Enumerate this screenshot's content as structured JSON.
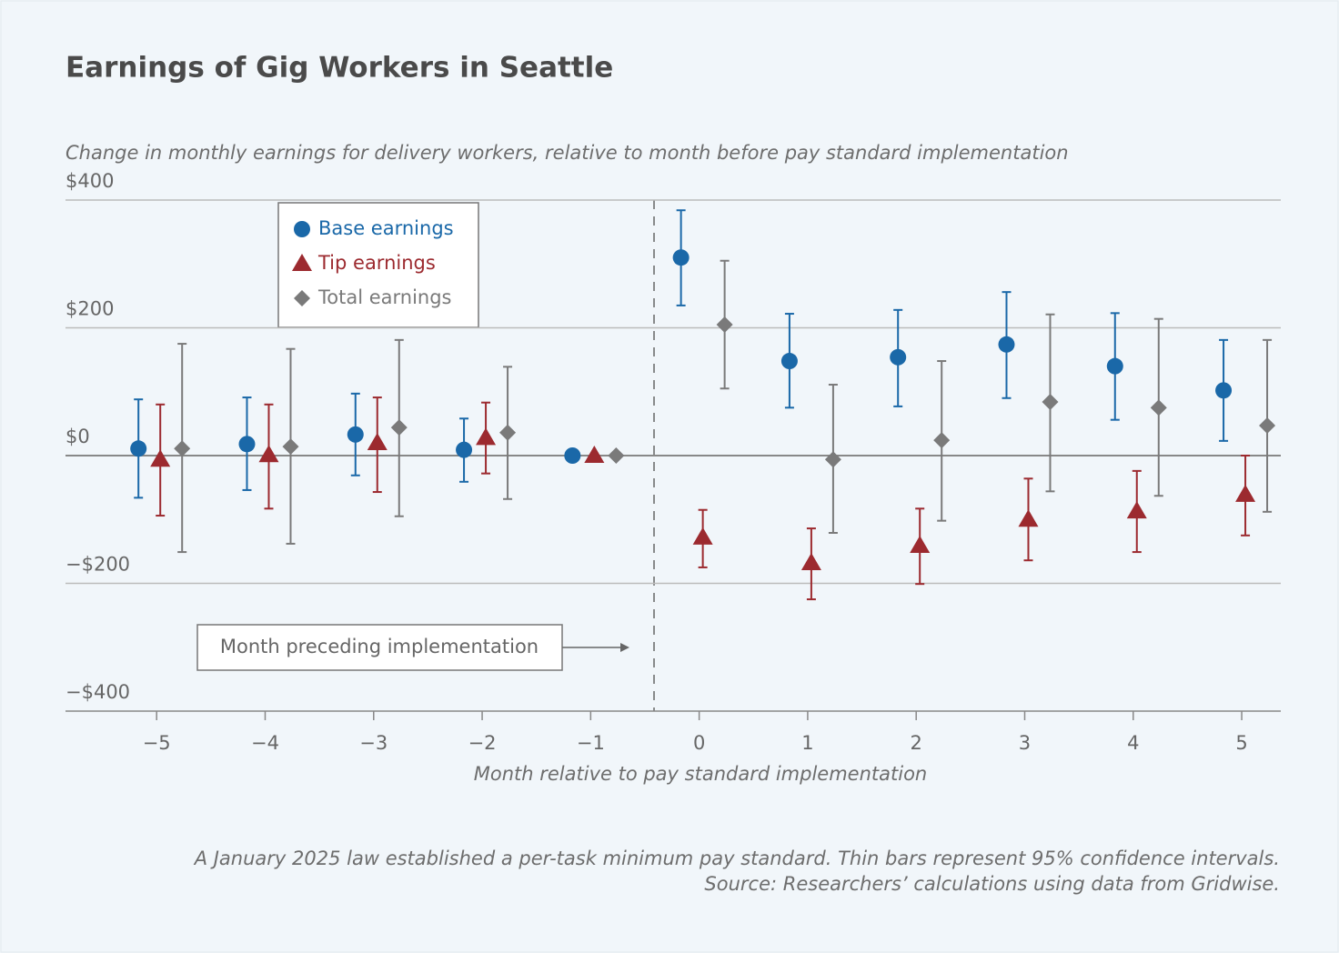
{
  "chart_data": {
    "type": "errorbar",
    "title": "Earnings of Gig Workers in Seattle",
    "subtitle": "Change in monthly earnings for delivery workers, relative to month before pay standard implementation",
    "x_label": "Month relative to pay standard implementation",
    "annotation": "Month preceding implementation",
    "notes": [
      "A January 2025 law established a per-task minimum pay standard. Thin bars represent 95% confidence intervals.",
      "Source: Researchers’ calculations using data from Gridwise."
    ],
    "x": [
      -5,
      -4,
      -3,
      -2,
      -1,
      0,
      1,
      2,
      3,
      4,
      5
    ],
    "series": [
      {
        "name": "Base earnings",
        "color": "#1a68a8",
        "marker": "circle",
        "values": [
          11,
          18,
          33,
          9,
          0,
          310,
          148,
          154,
          174,
          140,
          102
        ],
        "lower": [
          -66,
          -54,
          -31,
          -41,
          0,
          235,
          75,
          77,
          90,
          56,
          23
        ],
        "upper": [
          88,
          91,
          97,
          58,
          0,
          384,
          222,
          228,
          256,
          223,
          181
        ]
      },
      {
        "name": "Tip earnings",
        "color": "#9c2a2f",
        "marker": "triangle",
        "values": [
          -6,
          1,
          20,
          28,
          0,
          -128,
          -168,
          -141,
          -100,
          -87,
          -61
        ],
        "lower": [
          -94,
          -83,
          -57,
          -28,
          0,
          -175,
          -225,
          -201,
          -164,
          -151,
          -125
        ],
        "upper": [
          80,
          80,
          91,
          83,
          0,
          -85,
          -114,
          -83,
          -36,
          -24,
          0
        ]
      },
      {
        "name": "Total earnings",
        "color": "#7a7a7a",
        "marker": "diamond",
        "values": [
          11,
          14,
          44,
          36,
          0,
          205,
          -6,
          24,
          84,
          75,
          47
        ],
        "lower": [
          -151,
          -138,
          -95,
          -68,
          0,
          105,
          -121,
          -102,
          -56,
          -63,
          -88
        ],
        "upper": [
          175,
          167,
          181,
          139,
          0,
          305,
          111,
          148,
          221,
          214,
          181
        ]
      }
    ],
    "xlim": [
      -5.84,
      5.36
    ],
    "xticks": [
      {
        "value": -5,
        "label": "−5"
      },
      {
        "value": -4,
        "label": "−4"
      },
      {
        "value": -3,
        "label": "−3"
      },
      {
        "value": -2,
        "label": "−2"
      },
      {
        "value": -1,
        "label": "−1"
      },
      0,
      1,
      2,
      3,
      4,
      5
    ],
    "ylim": [
      -400,
      400
    ],
    "yticks": [
      {
        "value": -400,
        "label": "−$400"
      },
      {
        "value": -200,
        "label": "−$200"
      },
      {
        "value": 0,
        "label": "$0"
      },
      {
        "value": 200,
        "label": "$200"
      },
      {
        "value": 400,
        "label": "$400"
      }
    ],
    "grid": true
  }
}
